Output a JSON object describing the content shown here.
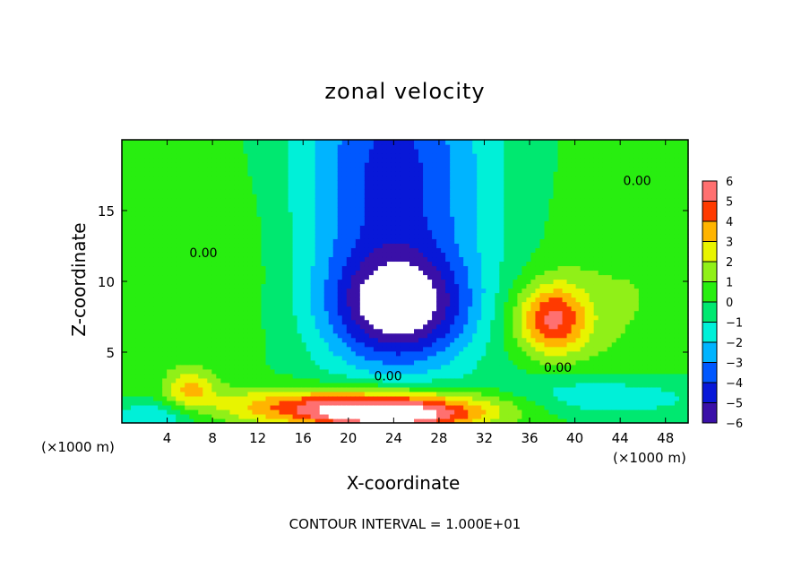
{
  "chart_data": {
    "type": "heatmap",
    "title": "zonal velocity",
    "xlabel": "X-coordinate",
    "ylabel": "Z-coordinate",
    "x_unit_left": "(×1000 m)",
    "x_unit_right": "(×1000 m)",
    "xlim": [
      0,
      50
    ],
    "ylim": [
      0,
      20
    ],
    "xticks": [
      "4",
      "8",
      "12",
      "16",
      "20",
      "24",
      "28",
      "32",
      "36",
      "40",
      "44",
      "48"
    ],
    "xtick_values": [
      4,
      8,
      12,
      16,
      20,
      24,
      28,
      32,
      36,
      40,
      44,
      48
    ],
    "yticks": [
      "5",
      "10",
      "15"
    ],
    "ytick_values": [
      5,
      10,
      15
    ],
    "colorbar": {
      "levels": [
        -6,
        -5,
        -4,
        -3,
        -2,
        -1,
        0,
        1,
        2,
        3,
        4,
        5,
        6
      ],
      "labels": [
        "−6",
        "−5",
        "−4",
        "−3",
        "−2",
        "−1",
        "0",
        "1",
        "2",
        "3",
        "4",
        "5",
        "6"
      ],
      "colors": [
        "#3a10a8",
        "#0818d8",
        "#0058ff",
        "#00b4ff",
        "#00f0d8",
        "#00e870",
        "#28ee10",
        "#90f018",
        "#e8f400",
        "#ffb400",
        "#ff3a00",
        "#ff7070"
      ]
    },
    "field_model": {
      "base": 0.2,
      "out_of_range_color": "#ffffff",
      "features": [
        {
          "x": 24,
          "z": 17,
          "sx": 6,
          "sz": 9,
          "a": -4.6
        },
        {
          "x": 24.5,
          "z": 8.2,
          "sx": 4.2,
          "sz": 2.6,
          "a": -5.2
        },
        {
          "x": 22,
          "z": 1.2,
          "sx": 8.5,
          "sz": 0.9,
          "a": 6.5
        },
        {
          "x": 24,
          "z": 0.3,
          "sx": 5,
          "sz": 0.6,
          "a": 4
        },
        {
          "x": 38,
          "z": 7.4,
          "sx": 2.3,
          "sz": 1.8,
          "a": 5
        },
        {
          "x": 42,
          "z": 1.8,
          "sx": 7,
          "sz": 1.1,
          "a": -2.4
        },
        {
          "x": 6,
          "z": 2.4,
          "sx": 1.5,
          "sz": 1,
          "a": 2.8
        },
        {
          "x": 3,
          "z": 0.6,
          "sx": 3,
          "sz": 0.8,
          "a": -2.5
        },
        {
          "x": 6,
          "z": 12,
          "sx": 6,
          "sz": 5,
          "a": 0.8
        },
        {
          "x": 45,
          "z": 9,
          "sx": 5,
          "sz": 5,
          "a": 0.8
        }
      ]
    },
    "contour_labels": [
      {
        "text": "0.00",
        "x": 45.5,
        "z": 16.8
      },
      {
        "text": "0.00",
        "x": 7.2,
        "z": 11.7
      },
      {
        "text": "0.00",
        "x": 23.5,
        "z": 3.0
      },
      {
        "text": "0.00",
        "x": 38.5,
        "z": 3.6
      }
    ],
    "footer": "CONTOUR INTERVAL = 1.000E+01"
  }
}
